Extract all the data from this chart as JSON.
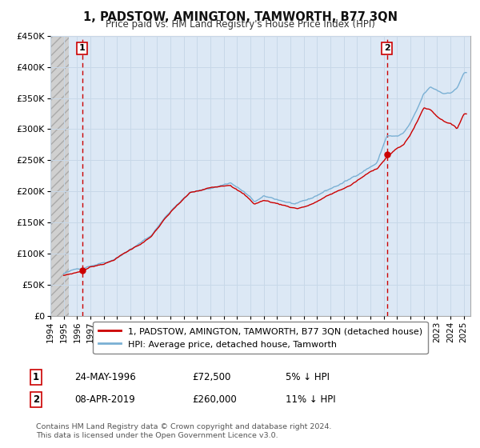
{
  "title": "1, PADSTOW, AMINGTON, TAMWORTH, B77 3QN",
  "subtitle": "Price paid vs. HM Land Registry's House Price Index (HPI)",
  "ylim": [
    0,
    450000
  ],
  "yticks": [
    0,
    50000,
    100000,
    150000,
    200000,
    250000,
    300000,
    350000,
    400000,
    450000
  ],
  "ytick_labels": [
    "£0",
    "£50K",
    "£100K",
    "£150K",
    "£200K",
    "£250K",
    "£300K",
    "£350K",
    "£400K",
    "£450K"
  ],
  "xlim_start": 1994.0,
  "xlim_end": 2025.5,
  "hatch_end": 1995.4,
  "grid_color": "#c8d8e8",
  "bg_color": "#dce8f5",
  "sale1_year": 1996.38,
  "sale1_price": 72500,
  "sale1_label": "1",
  "sale2_year": 2019.25,
  "sale2_price": 260000,
  "sale2_label": "2",
  "legend1_label": "1, PADSTOW, AMINGTON, TAMWORTH, B77 3QN (detached house)",
  "legend2_label": "HPI: Average price, detached house, Tamworth",
  "footer": "Contains HM Land Registry data © Crown copyright and database right 2024.\nThis data is licensed under the Open Government Licence v3.0.",
  "line_color_property": "#cc0000",
  "line_color_hpi": "#7ab0d4",
  "point_color": "#cc0000",
  "vline_color": "#cc0000",
  "table_row1_date": "24-MAY-1996",
  "table_row1_price": "£72,500",
  "table_row1_hpi": "5% ↓ HPI",
  "table_row2_date": "08-APR-2019",
  "table_row2_price": "£260,000",
  "table_row2_hpi": "11% ↓ HPI"
}
